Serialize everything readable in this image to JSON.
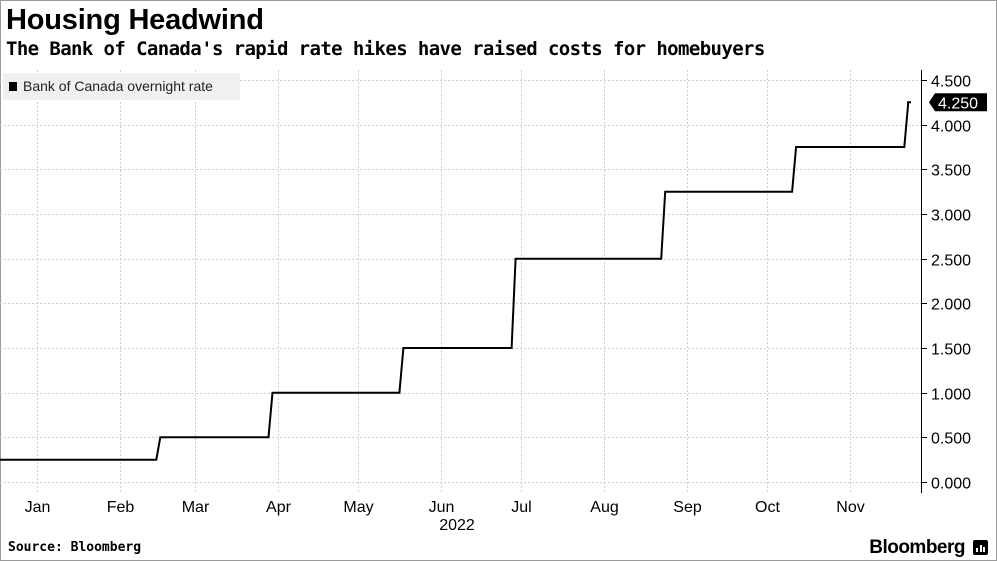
{
  "header": {
    "title": "Housing Headwind",
    "subtitle": "The Bank of Canada's rapid rate hikes have raised costs for homebuyers"
  },
  "footer": {
    "source": "Source: Bloomberg",
    "brand": "Bloomberg"
  },
  "colors": {
    "line": "#000000",
    "grid": "#cfcfcf",
    "legend_bg": "#f0f0f0",
    "label_bg": "#000000",
    "label_text": "#ffffff"
  },
  "icons": {
    "brand": "bar-chart-icon"
  },
  "chart_data": {
    "type": "line",
    "line_shape": "step",
    "title": "Housing Headwind",
    "subtitle": "The Bank of Canada's rapid rate hikes have raised costs for homebuyers",
    "xlabel": "",
    "ylabel": "",
    "x_year_label": "2022",
    "x_range": [
      "2022-01-01",
      "2022-12-08"
    ],
    "x_ticks": [
      {
        "date": "2022-01-15",
        "label": "Jan"
      },
      {
        "date": "2022-02-15",
        "label": "Feb"
      },
      {
        "date": "2022-03-15",
        "label": "Mar"
      },
      {
        "date": "2022-04-15",
        "label": "Apr"
      },
      {
        "date": "2022-05-15",
        "label": "May"
      },
      {
        "date": "2022-06-15",
        "label": "Jun"
      },
      {
        "date": "2022-07-15",
        "label": "Jul"
      },
      {
        "date": "2022-08-15",
        "label": "Aug"
      },
      {
        "date": "2022-09-15",
        "label": "Sep"
      },
      {
        "date": "2022-10-15",
        "label": "Oct"
      },
      {
        "date": "2022-11-15",
        "label": "Nov"
      }
    ],
    "ylim": [
      0,
      4.5
    ],
    "y_ticks": [
      0,
      0.5,
      1,
      1.5,
      2,
      2.5,
      3,
      3.5,
      4,
      4.5
    ],
    "y_tick_labels": [
      "0.000",
      "0.500",
      "1.000",
      "1.500",
      "2.000",
      "2.500",
      "3.000",
      "3.500",
      "4.000",
      "4.500"
    ],
    "y_axis_position": "right",
    "grid": true,
    "legend": "top-left",
    "series": [
      {
        "name": "Bank of Canada overnight rate",
        "x": [
          "2022-01-01",
          "2022-03-02",
          "2022-04-13",
          "2022-06-01",
          "2022-07-13",
          "2022-09-07",
          "2022-10-26",
          "2022-12-07",
          "2022-12-08"
        ],
        "values": [
          0.25,
          0.5,
          1.0,
          1.5,
          2.5,
          3.25,
          3.75,
          4.25,
          4.25
        ]
      }
    ],
    "last_value_label": "4.250"
  }
}
